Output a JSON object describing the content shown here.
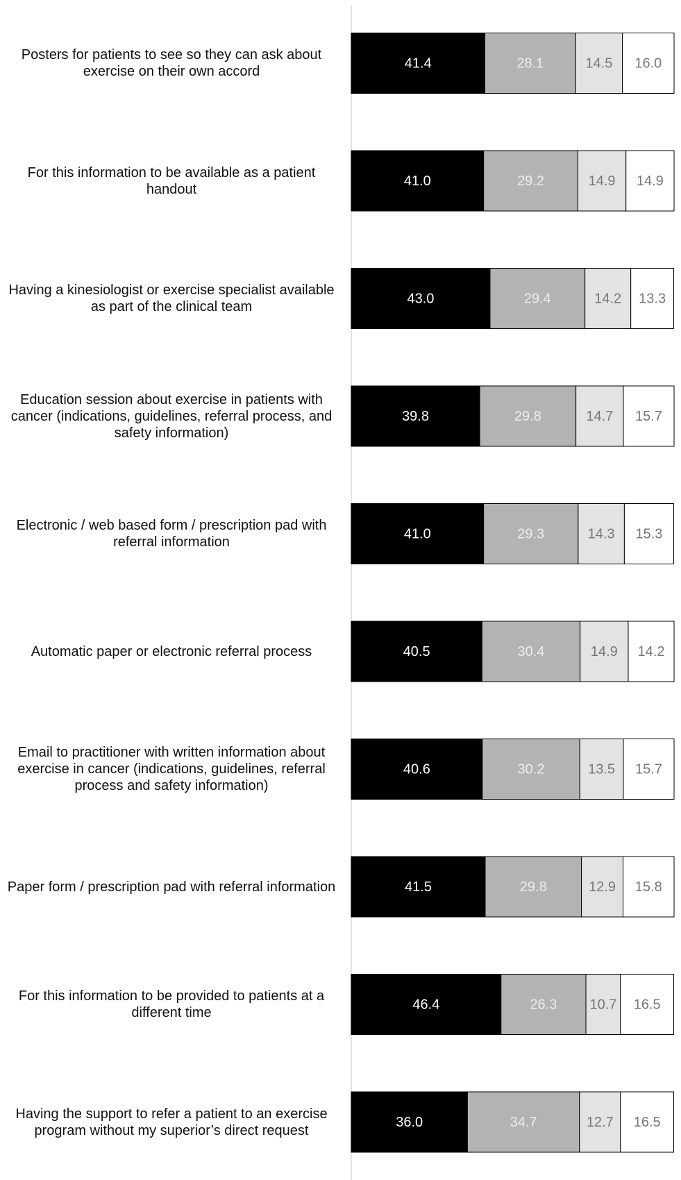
{
  "chart_data": {
    "type": "stacked-barh",
    "categories": [
      "Posters for patients to see so they can ask about exercise on their own accord",
      "For this information to be available as a patient handout",
      "Having a kinesiologist or exercise specialist available as part of the clinical team",
      "Education session about exercise in patients with cancer (indications, guidelines, referral process, and safety information)",
      "Electronic / web based form / prescription pad with referral information",
      "Automatic paper or electronic referral process",
      "Email to practitioner with written information about exercise in cancer (indications, guidelines, referral process and safety information)",
      "Paper form / prescription pad with referral information",
      "For this information to be provided to patients at a different time",
      "Having the support to refer a patient to an exercise program without my superior’s direct request"
    ],
    "series": [
      {
        "color": "#000000",
        "label_color": "#ffffff",
        "values": [
          41.4,
          41.0,
          43.0,
          39.8,
          41.0,
          40.5,
          40.6,
          41.5,
          46.4,
          36.0
        ]
      },
      {
        "color": "#b3b3b3",
        "label_color": "#eeeeee",
        "values": [
          28.1,
          29.2,
          29.4,
          29.8,
          29.3,
          30.4,
          30.2,
          29.8,
          26.3,
          34.7
        ]
      },
      {
        "color": "#e3e3e3",
        "label_color": "#777777",
        "values": [
          14.5,
          14.9,
          14.2,
          14.7,
          14.3,
          14.9,
          13.5,
          12.9,
          10.7,
          12.7
        ]
      },
      {
        "color": "#ffffff",
        "label_color": "#777777",
        "values": [
          16.0,
          14.9,
          13.3,
          15.7,
          15.3,
          14.2,
          15.7,
          15.8,
          16.5,
          16.5
        ]
      }
    ],
    "value_labels": [
      [
        "41.4",
        "41.0",
        "43.0",
        "39.8",
        "41.0",
        "40.5",
        "40.6",
        "41.5",
        "46.4",
        "36.0"
      ],
      [
        "28.1",
        "29.2",
        "29.4",
        "29.8",
        "29.3",
        "30.4",
        "30.2",
        "29.8",
        "26.3",
        "34.7"
      ],
      [
        "14.5",
        "14.9",
        "14.2",
        "14.7",
        "14.3",
        "14.9",
        "13.5",
        "12.9",
        "10.7",
        "12.7"
      ],
      [
        "16.0",
        "14.9",
        "13.3",
        "15.7",
        "15.3",
        "14.2",
        "15.7",
        "15.8",
        "16.5",
        "16.5"
      ]
    ],
    "xlim": [
      0,
      100
    ]
  }
}
